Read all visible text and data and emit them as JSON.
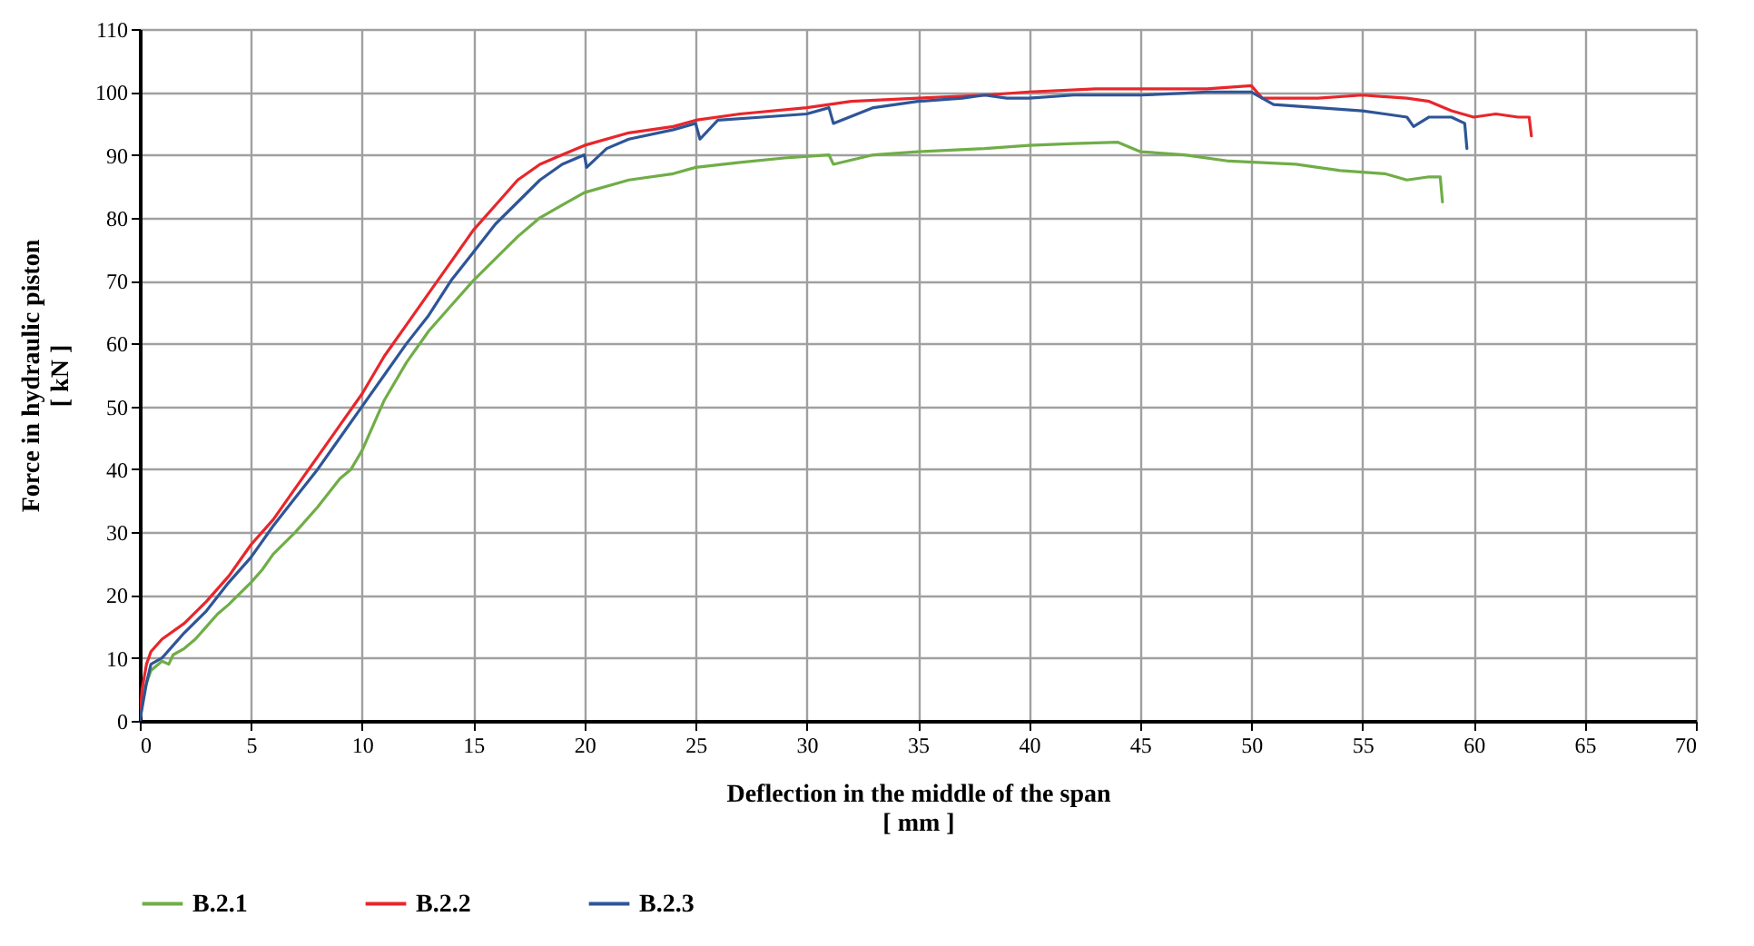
{
  "chart_data": {
    "type": "line",
    "xlabel": "Deflection in the middle of the span\n[ mm ]",
    "ylabel": "Force in hydraulic piston\n[ kN ]",
    "xlim": [
      0,
      70
    ],
    "xticks": [
      0,
      5,
      10,
      15,
      20,
      25,
      30,
      35,
      40,
      45,
      50,
      55,
      60,
      65,
      70
    ],
    "ylim": [
      0,
      110
    ],
    "yticks": [
      0,
      10,
      20,
      30,
      40,
      50,
      60,
      70,
      80,
      90,
      100,
      110
    ],
    "grid": true,
    "legend": "bottom",
    "marker": "none",
    "line_style": "solid",
    "series": [
      {
        "name": "B.2.1",
        "color": "#70ad47",
        "x": [
          0,
          0.2,
          0.5,
          1,
          1.3,
          1.5,
          2,
          2.5,
          3,
          3.5,
          4,
          5,
          5.5,
          6,
          7,
          8,
          9,
          9.5,
          10,
          10.5,
          11,
          12,
          13,
          14,
          15,
          16,
          17,
          18,
          19,
          20,
          22,
          24,
          25,
          27,
          29,
          31,
          31.2,
          33,
          35,
          38,
          40,
          42,
          44,
          45,
          47,
          49,
          52,
          54,
          56,
          57,
          58,
          58.5,
          58.6
        ],
        "values": [
          0,
          5,
          8,
          9.5,
          9,
          10.5,
          11.5,
          13,
          15,
          17,
          18.5,
          22,
          24,
          26.5,
          30,
          34,
          38.5,
          40,
          43,
          47,
          51,
          57,
          62,
          66,
          70,
          73.5,
          77,
          80,
          82,
          84,
          86,
          87,
          88,
          88.8,
          89.5,
          90,
          88.5,
          90,
          90.5,
          91,
          91.5,
          91.8,
          92,
          90.5,
          90,
          89,
          88.5,
          87.5,
          87,
          86,
          86.5,
          86.5,
          82.5
        ]
      },
      {
        "name": "B.2.2",
        "color": "#e8262b",
        "x": [
          0,
          0.1,
          0.3,
          0.5,
          1,
          2,
          3,
          4,
          5,
          6,
          7,
          8,
          9,
          10,
          11,
          12,
          13,
          14,
          15,
          16,
          17,
          18,
          19,
          20,
          22,
          24,
          25,
          27,
          30,
          32,
          35,
          38,
          40,
          43,
          45,
          48,
          50,
          50.5,
          53,
          55,
          57,
          58,
          59,
          60,
          61,
          62,
          62.5,
          62.6
        ],
        "values": [
          0,
          5,
          9,
          11,
          13,
          15.5,
          19,
          23,
          28,
          32,
          37,
          42,
          47,
          52,
          58,
          63,
          68,
          73,
          78,
          82,
          86,
          88.5,
          90,
          91.5,
          93.5,
          94.5,
          95.5,
          96.5,
          97.5,
          98.5,
          99,
          99.5,
          100,
          100.5,
          100.5,
          100.5,
          101,
          99,
          99,
          99.5,
          99,
          98.5,
          97,
          96,
          96.5,
          96,
          96,
          93
        ]
      },
      {
        "name": "B.2.3",
        "color": "#2e5597",
        "x": [
          0,
          0.3,
          0.5,
          1,
          1.5,
          2,
          3,
          4,
          5,
          6,
          7,
          8,
          9,
          10,
          11,
          12,
          13,
          14,
          15,
          16,
          17,
          18,
          19,
          20,
          20.1,
          21,
          22,
          24,
          25,
          25.2,
          26,
          28,
          30,
          31,
          31.2,
          33,
          35,
          37,
          38,
          39,
          40,
          42,
          44,
          45,
          47,
          48,
          50,
          51,
          53,
          55,
          56,
          57,
          57.3,
          58,
          59,
          59.6,
          59.7
        ],
        "values": [
          0,
          6,
          9,
          10,
          12,
          14,
          17.5,
          22,
          26,
          31,
          35.5,
          40,
          45,
          50,
          55,
          60,
          64.5,
          70,
          74.5,
          79,
          82.5,
          86,
          88.5,
          90,
          88,
          91,
          92.5,
          94,
          95,
          92.5,
          95.5,
          96,
          96.5,
          97.5,
          95,
          97.5,
          98.5,
          99,
          99.5,
          99,
          99,
          99.5,
          99.5,
          99.5,
          99.8,
          100,
          100,
          98,
          97.5,
          97,
          96.5,
          96,
          94.5,
          96,
          96,
          95,
          91
        ]
      }
    ]
  }
}
